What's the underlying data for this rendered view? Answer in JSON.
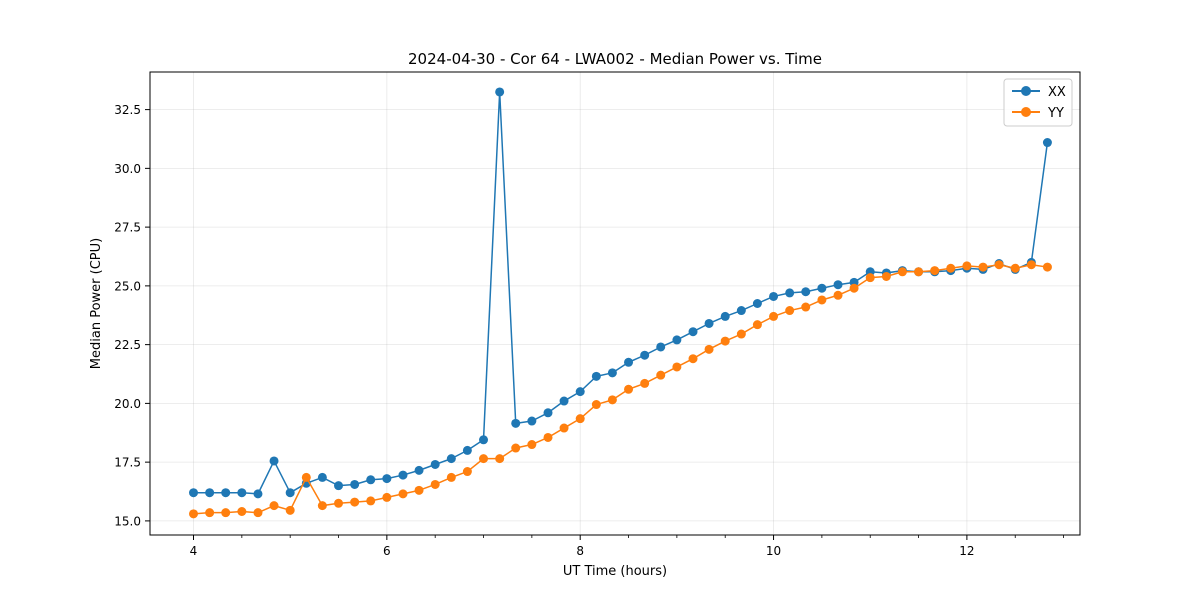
{
  "chart_data": {
    "type": "line",
    "title": "2024-04-30 - Cor 64 - LWA002 - Median Power vs. Time",
    "xlabel": "UT Time (hours)",
    "ylabel": "Median Power (CPU)",
    "xlim": [
      3.55,
      13.17
    ],
    "ylim": [
      14.4,
      34.1
    ],
    "xticks": [
      4,
      6,
      8,
      10,
      12
    ],
    "xtick_labels": [
      "4",
      "6",
      "8",
      "10",
      "12"
    ],
    "xminor_step": 0.5,
    "yticks": [
      15.0,
      17.5,
      20.0,
      22.5,
      25.0,
      27.5,
      30.0,
      32.5
    ],
    "ytick_labels": [
      "15.0",
      "17.5",
      "20.0",
      "22.5",
      "25.0",
      "27.5",
      "30.0",
      "32.5"
    ],
    "grid": true,
    "legend_position": "top-right",
    "x": [
      4.0,
      4.167,
      4.333,
      4.5,
      4.667,
      4.833,
      5.0,
      5.167,
      5.333,
      5.5,
      5.667,
      5.833,
      6.0,
      6.167,
      6.333,
      6.5,
      6.667,
      6.833,
      7.0,
      7.167,
      7.333,
      7.5,
      7.667,
      7.833,
      8.0,
      8.167,
      8.333,
      8.5,
      8.667,
      8.833,
      9.0,
      9.167,
      9.333,
      9.5,
      9.667,
      9.833,
      10.0,
      10.167,
      10.333,
      10.5,
      10.667,
      10.833,
      11.0,
      11.167,
      11.333,
      11.5,
      11.667,
      11.833,
      12.0,
      12.167,
      12.333,
      12.5,
      12.667,
      12.833
    ],
    "series": [
      {
        "name": "XX",
        "color": "#1f77b4",
        "values": [
          16.2,
          16.2,
          16.2,
          16.2,
          16.15,
          17.55,
          16.2,
          16.6,
          16.85,
          16.5,
          16.55,
          16.75,
          16.8,
          16.95,
          17.15,
          17.4,
          17.65,
          18.0,
          18.45,
          33.25,
          19.15,
          19.25,
          19.6,
          20.1,
          20.5,
          21.15,
          21.3,
          21.75,
          22.05,
          22.4,
          22.7,
          23.05,
          23.4,
          23.7,
          23.95,
          24.25,
          24.55,
          24.7,
          24.75,
          24.9,
          25.05,
          25.15,
          25.6,
          25.55,
          25.65,
          25.6,
          25.6,
          25.65,
          25.75,
          25.7,
          25.95,
          25.7,
          26.0,
          31.1
        ]
      },
      {
        "name": "YY",
        "color": "#ff7f0e",
        "values": [
          15.3,
          15.35,
          15.35,
          15.4,
          15.35,
          15.65,
          15.45,
          16.85,
          15.65,
          15.75,
          15.8,
          15.85,
          16.0,
          16.15,
          16.3,
          16.55,
          16.85,
          17.1,
          17.65,
          17.65,
          18.1,
          18.25,
          18.55,
          18.95,
          19.35,
          19.95,
          20.15,
          20.6,
          20.85,
          21.2,
          21.55,
          21.9,
          22.3,
          22.65,
          22.95,
          23.35,
          23.7,
          23.95,
          24.1,
          24.4,
          24.6,
          24.9,
          25.35,
          25.4,
          25.6,
          25.6,
          25.65,
          25.75,
          25.85,
          25.8,
          25.9,
          25.75,
          25.9,
          25.8
        ]
      }
    ]
  }
}
